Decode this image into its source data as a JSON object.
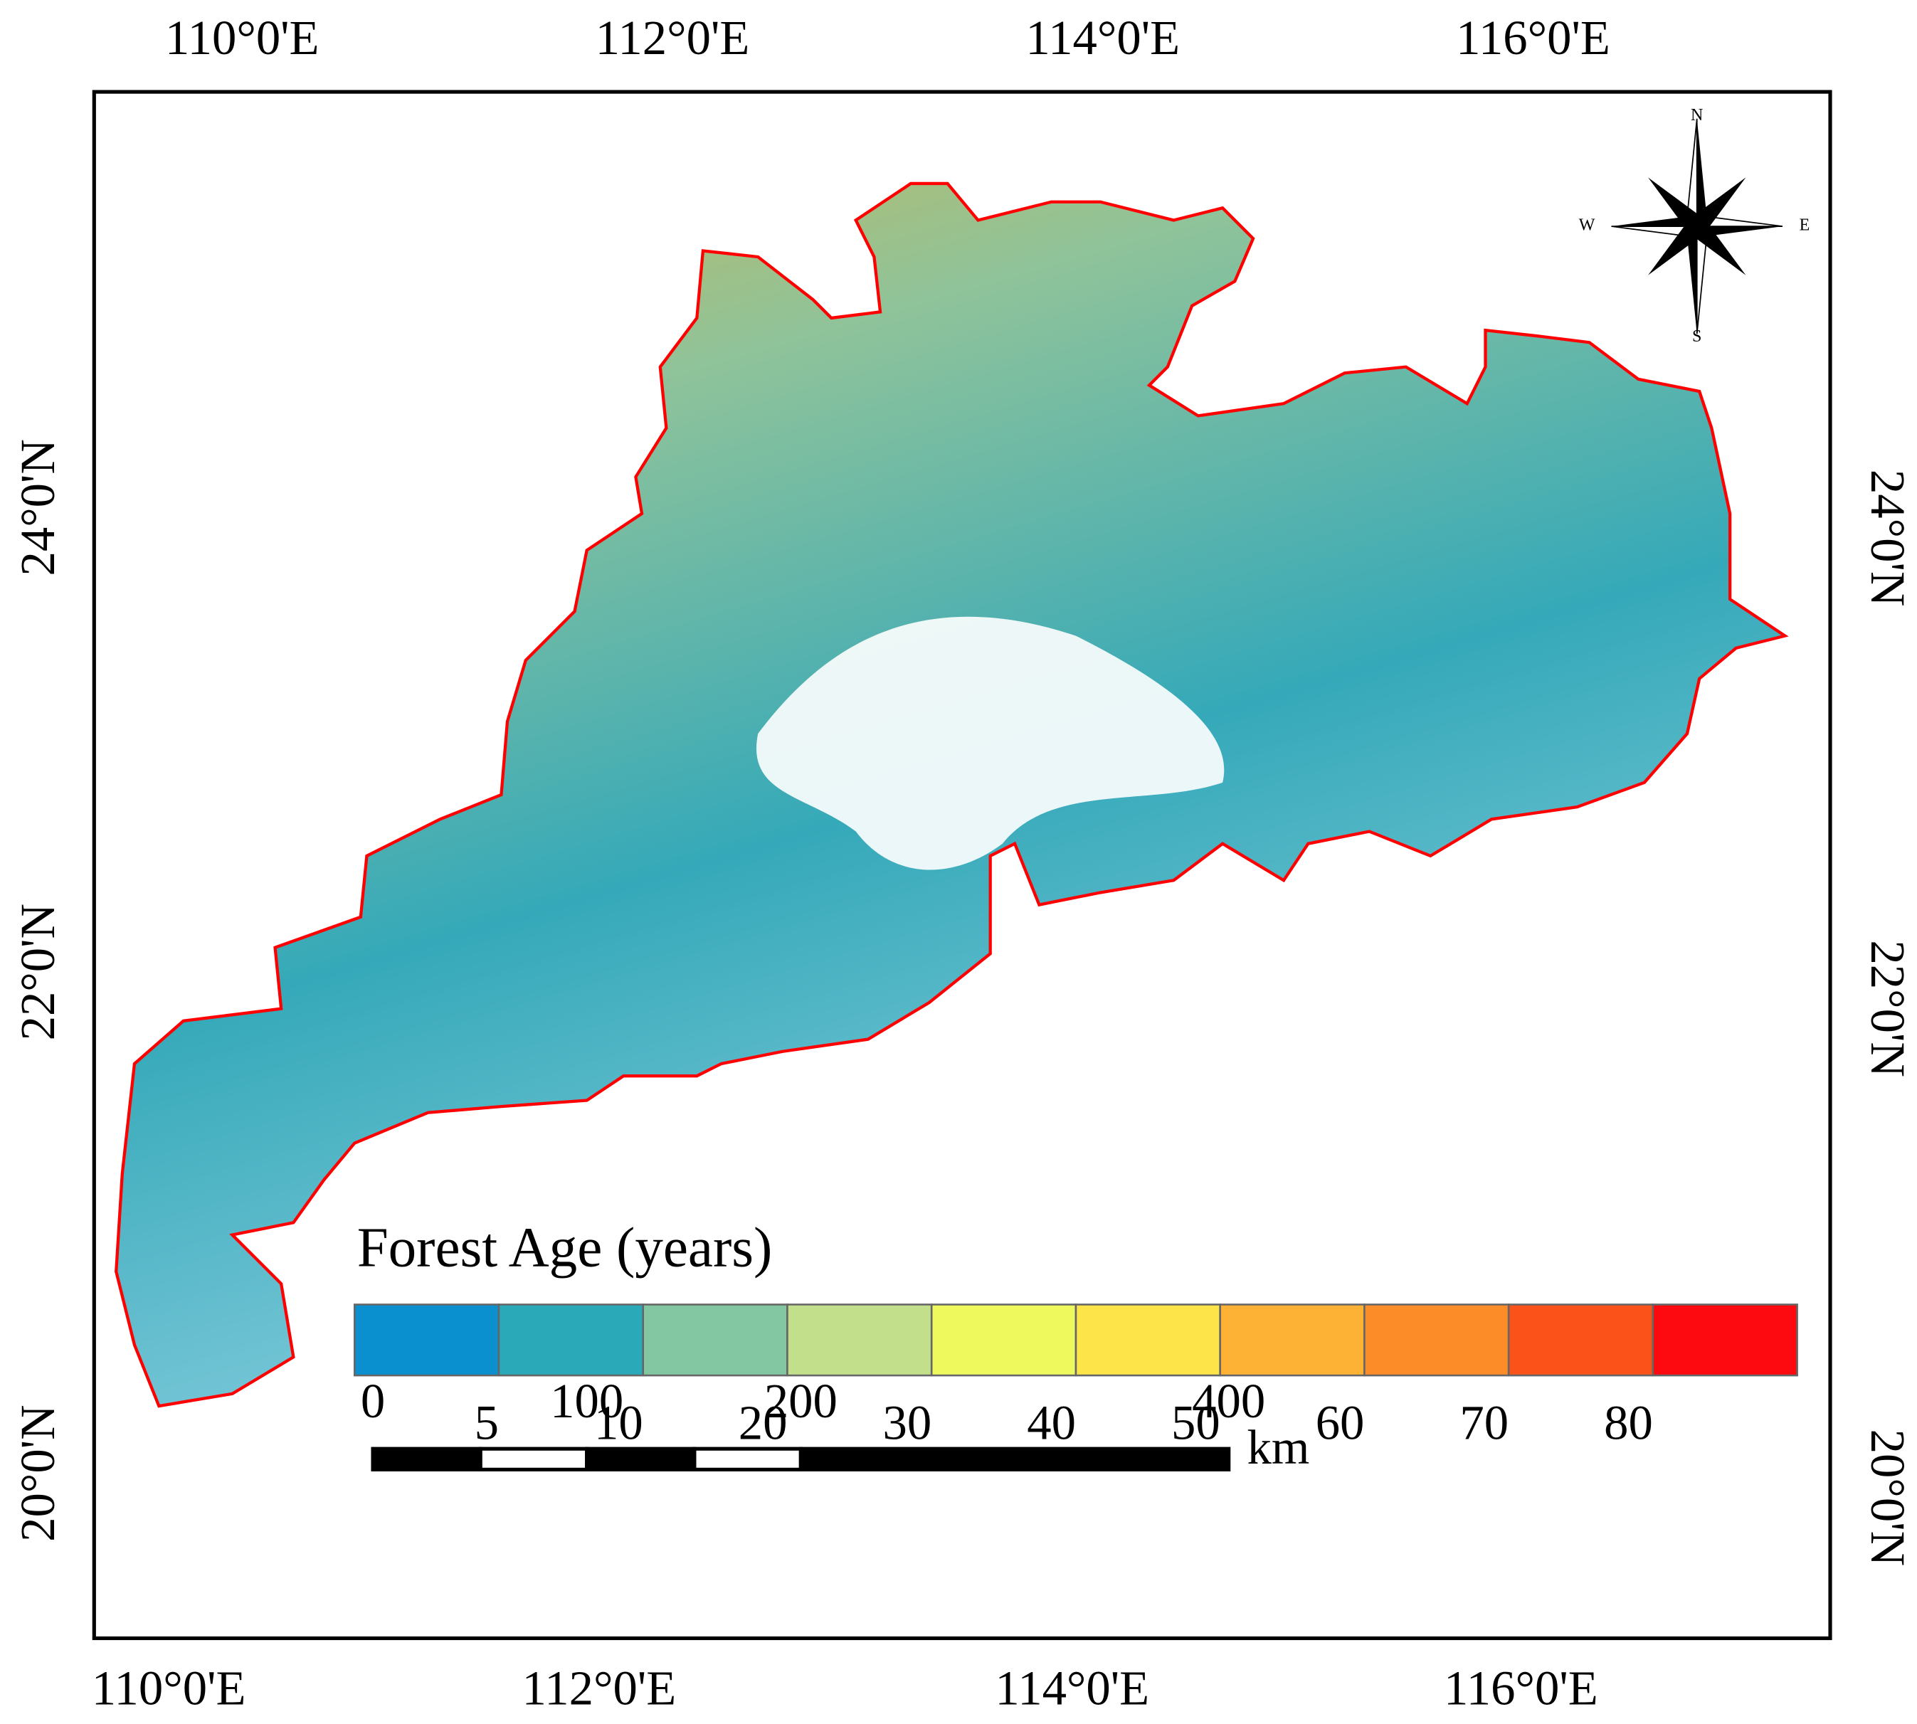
{
  "map": {
    "top_lon_labels": [
      "110°0'E",
      "112°0'E",
      "114°0'E",
      "116°0'E"
    ],
    "bottom_lon_labels": [
      "110°0'E",
      "112°0'E",
      "114°0'E",
      "116°0'E"
    ],
    "left_lat_labels": [
      "24°0'N",
      "22°0'N",
      "20°0'N"
    ],
    "right_lat_labels": [
      "24°0'N",
      "22°0'N",
      "20°0'N"
    ],
    "compass": {
      "north": "N",
      "east": "E",
      "south": "S",
      "west": "W"
    },
    "legend": {
      "title": "Forest Age (years)",
      "colors": [
        "#0a8fcf",
        "#2aa9b8",
        "#82c6a2",
        "#c2df8c",
        "#eef95e",
        "#fde449",
        "#fdb236",
        "#fb8c28",
        "#fb5219",
        "#fc0a0f"
      ],
      "labels": [
        "5",
        "10",
        "20",
        "30",
        "40",
        "50",
        "60",
        "70",
        "80"
      ]
    },
    "scale_bar": {
      "labels": [
        "0",
        "100",
        "200",
        "400"
      ],
      "unit": "km"
    }
  }
}
